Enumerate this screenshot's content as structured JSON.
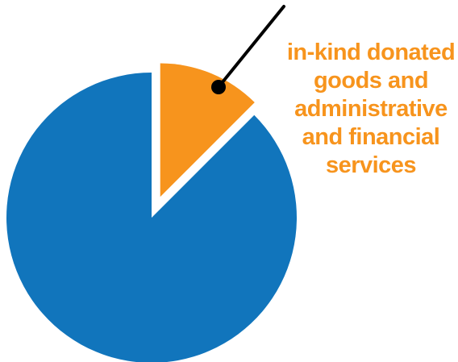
{
  "chart_data": {
    "type": "pie",
    "exploded_slice": 1,
    "slices": [
      {
        "label": "",
        "value": 87.5,
        "color": "#1175bc"
      },
      {
        "label": "in-kind donated goods and administrative and financial services",
        "value": 12.5,
        "color": "#f7941d"
      }
    ],
    "annotation": {
      "lines": [
        "in-kind donated",
        "goods and",
        "administrative",
        "and financial",
        "services"
      ],
      "color": "#f7941d",
      "pointer_color": "#000000"
    }
  }
}
